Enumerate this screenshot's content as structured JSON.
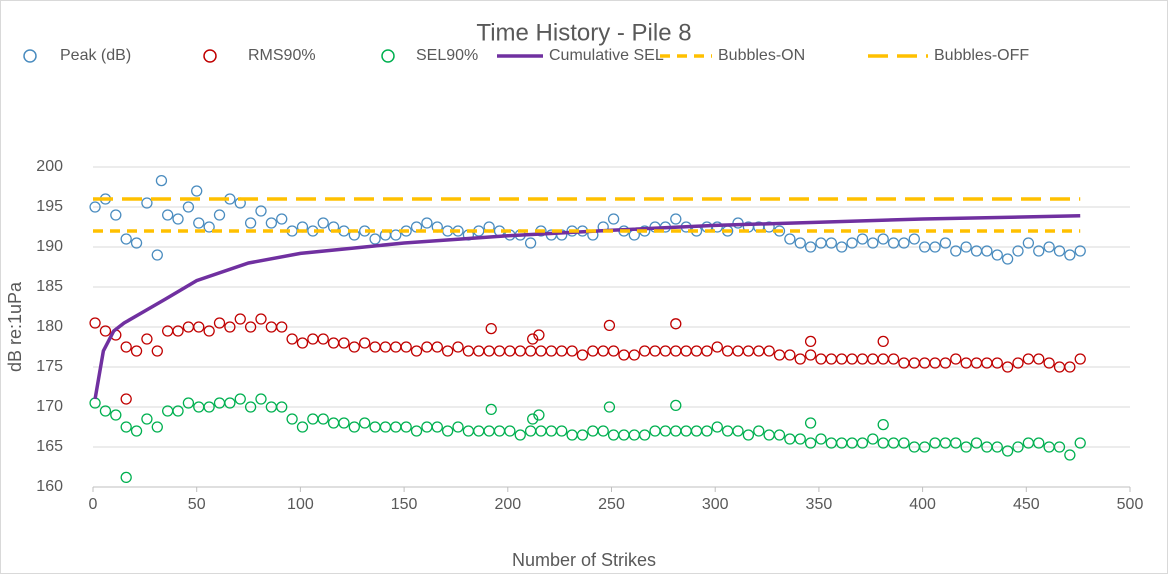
{
  "chart_data": {
    "type": "scatter",
    "title": "Time History - Pile 8",
    "xlabel": "Number of Strikes",
    "ylabel": "dB re:1uPa",
    "xlim": [
      0,
      500
    ],
    "xticks": [
      0,
      50,
      100,
      150,
      200,
      250,
      300,
      350,
      400,
      450,
      500
    ],
    "ylim": [
      160,
      200
    ],
    "yticks": [
      160,
      165,
      170,
      175,
      180,
      185,
      190,
      195,
      200
    ],
    "grid": true,
    "legend": "top",
    "series": [
      {
        "name": "Peak (dB)",
        "color": "#4a8cbf",
        "style": "marker",
        "x": [
          1,
          6,
          11,
          16,
          21,
          26,
          31,
          36,
          41,
          46,
          51,
          56,
          61,
          66,
          71,
          76,
          81,
          86,
          91,
          96,
          101,
          106,
          111,
          116,
          121,
          126,
          131,
          136,
          141,
          146,
          151,
          156,
          161,
          166,
          171,
          176,
          181,
          186,
          191,
          196,
          201,
          206,
          211,
          216,
          221,
          226,
          231,
          236,
          241,
          246,
          251,
          256,
          261,
          266,
          271,
          276,
          281,
          286,
          291,
          296,
          301,
          306,
          311,
          316,
          321,
          326,
          331,
          336,
          341,
          346,
          351,
          356,
          361,
          366,
          371,
          376,
          381,
          386,
          391,
          396,
          401,
          406,
          411,
          416,
          421,
          426,
          431,
          436,
          441,
          446,
          451,
          456,
          461,
          466,
          471,
          476,
          33,
          50
        ],
        "values": [
          195,
          196,
          194,
          191,
          190.5,
          195.5,
          189,
          194,
          193.5,
          195,
          193,
          192.5,
          194,
          196,
          195.5,
          193,
          194.5,
          193,
          193.5,
          192,
          192.5,
          192,
          193,
          192.5,
          192,
          191.5,
          192,
          191,
          191.5,
          191.5,
          192,
          192.5,
          193,
          192.5,
          192,
          192,
          191.5,
          192,
          192.5,
          192,
          191.5,
          191.5,
          190.5,
          192,
          191.5,
          191.5,
          192,
          192,
          191.5,
          192.5,
          193.5,
          192,
          191.5,
          192,
          192.5,
          192.5,
          193.5,
          192.5,
          192,
          192.5,
          192.5,
          192,
          193,
          192.5,
          192.5,
          192.5,
          192,
          191,
          190.5,
          190,
          190.5,
          190.5,
          190,
          190.5,
          191,
          190.5,
          191,
          190.5,
          190.5,
          191,
          190,
          190,
          190.5,
          189.5,
          190,
          189.5,
          189.5,
          189,
          188.5,
          189.5,
          190.5,
          189.5,
          190,
          189.5,
          189,
          189.5,
          198.3,
          197
        ]
      },
      {
        "name": "RMS90%",
        "color": "#c00000",
        "style": "marker",
        "x": [
          1,
          6,
          11,
          16,
          21,
          26,
          31,
          36,
          41,
          46,
          51,
          56,
          61,
          66,
          71,
          76,
          81,
          86,
          91,
          96,
          101,
          106,
          111,
          116,
          121,
          126,
          131,
          136,
          141,
          146,
          151,
          156,
          161,
          166,
          171,
          176,
          181,
          186,
          191,
          196,
          201,
          206,
          211,
          216,
          221,
          226,
          231,
          236,
          241,
          246,
          251,
          256,
          261,
          266,
          271,
          276,
          281,
          286,
          291,
          296,
          301,
          306,
          311,
          316,
          321,
          326,
          331,
          336,
          341,
          346,
          351,
          356,
          361,
          366,
          371,
          376,
          381,
          386,
          391,
          396,
          401,
          406,
          411,
          416,
          421,
          426,
          431,
          436,
          441,
          446,
          451,
          456,
          461,
          466,
          471,
          476,
          16,
          192,
          212,
          215,
          249,
          281,
          346,
          381
        ],
        "values": [
          180.5,
          179.5,
          179,
          177.5,
          177,
          178.5,
          177,
          179.5,
          179.5,
          180,
          180,
          179.5,
          180.5,
          180,
          181,
          180,
          181,
          180,
          180,
          178.5,
          178,
          178.5,
          178.5,
          178,
          178,
          177.5,
          178,
          177.5,
          177.5,
          177.5,
          177.5,
          177,
          177.5,
          177.5,
          177,
          177.5,
          177,
          177,
          177,
          177,
          177,
          177,
          177,
          177,
          177,
          177,
          177,
          176.5,
          177,
          177,
          177,
          176.5,
          176.5,
          177,
          177,
          177,
          177,
          177,
          177,
          177,
          177.5,
          177,
          177,
          177,
          177,
          177,
          176.5,
          176.5,
          176,
          176.5,
          176,
          176,
          176,
          176,
          176,
          176,
          176,
          176,
          175.5,
          175.5,
          175.5,
          175.5,
          175.5,
          176,
          175.5,
          175.5,
          175.5,
          175.5,
          175,
          175.5,
          176,
          176,
          175.5,
          175,
          175,
          176,
          171,
          179.8,
          178.5,
          179,
          180.2,
          180.4,
          178.2,
          178.2
        ]
      },
      {
        "name": "SEL90%",
        "color": "#00b050",
        "style": "marker",
        "x": [
          1,
          6,
          11,
          16,
          21,
          26,
          31,
          36,
          41,
          46,
          51,
          56,
          61,
          66,
          71,
          76,
          81,
          86,
          91,
          96,
          101,
          106,
          111,
          116,
          121,
          126,
          131,
          136,
          141,
          146,
          151,
          156,
          161,
          166,
          171,
          176,
          181,
          186,
          191,
          196,
          201,
          206,
          211,
          216,
          221,
          226,
          231,
          236,
          241,
          246,
          251,
          256,
          261,
          266,
          271,
          276,
          281,
          286,
          291,
          296,
          301,
          306,
          311,
          316,
          321,
          326,
          331,
          336,
          341,
          346,
          351,
          356,
          361,
          366,
          371,
          376,
          381,
          386,
          391,
          396,
          401,
          406,
          411,
          416,
          421,
          426,
          431,
          436,
          441,
          446,
          451,
          456,
          461,
          466,
          471,
          476,
          16,
          192,
          212,
          215,
          249,
          281,
          346,
          381
        ],
        "values": [
          170.5,
          169.5,
          169,
          167.5,
          167,
          168.5,
          167.5,
          169.5,
          169.5,
          170.5,
          170,
          170,
          170.5,
          170.5,
          171,
          170,
          171,
          170,
          170,
          168.5,
          167.5,
          168.5,
          168.5,
          168,
          168,
          167.5,
          168,
          167.5,
          167.5,
          167.5,
          167.5,
          167,
          167.5,
          167.5,
          167,
          167.5,
          167,
          167,
          167,
          167,
          167,
          166.5,
          167,
          167,
          167,
          167,
          166.5,
          166.5,
          167,
          167,
          166.5,
          166.5,
          166.5,
          166.5,
          167,
          167,
          167,
          167,
          167,
          167,
          167.5,
          167,
          167,
          166.5,
          167,
          166.5,
          166.5,
          166,
          166,
          165.5,
          166,
          165.5,
          165.5,
          165.5,
          165.5,
          166,
          165.5,
          165.5,
          165.5,
          165,
          165,
          165.5,
          165.5,
          165.5,
          165,
          165.5,
          165,
          165,
          164.5,
          165,
          165.5,
          165.5,
          165,
          165,
          164,
          165.5,
          161.2,
          169.7,
          168.5,
          169,
          170,
          170.2,
          168,
          167.8
        ]
      },
      {
        "name": "Cumulative SEL",
        "color": "#7030a0",
        "style": "line",
        "x": [
          1,
          5,
          10,
          15,
          25,
          35,
          50,
          75,
          100,
          150,
          200,
          250,
          300,
          350,
          400,
          476
        ],
        "values": [
          171,
          177,
          179.5,
          180.5,
          182,
          183.5,
          185.8,
          188,
          189.2,
          190.5,
          191.4,
          192.1,
          192.7,
          193.1,
          193.5,
          193.9
        ]
      },
      {
        "name": "Bubbles-ON",
        "color": "#ffc000",
        "style": "dash",
        "x": [
          0,
          476
        ],
        "values": [
          192,
          192
        ]
      },
      {
        "name": "Bubbles-OFF",
        "color": "#ffc000",
        "style": "longdash",
        "x": [
          0,
          476
        ],
        "values": [
          196,
          196
        ]
      }
    ]
  }
}
